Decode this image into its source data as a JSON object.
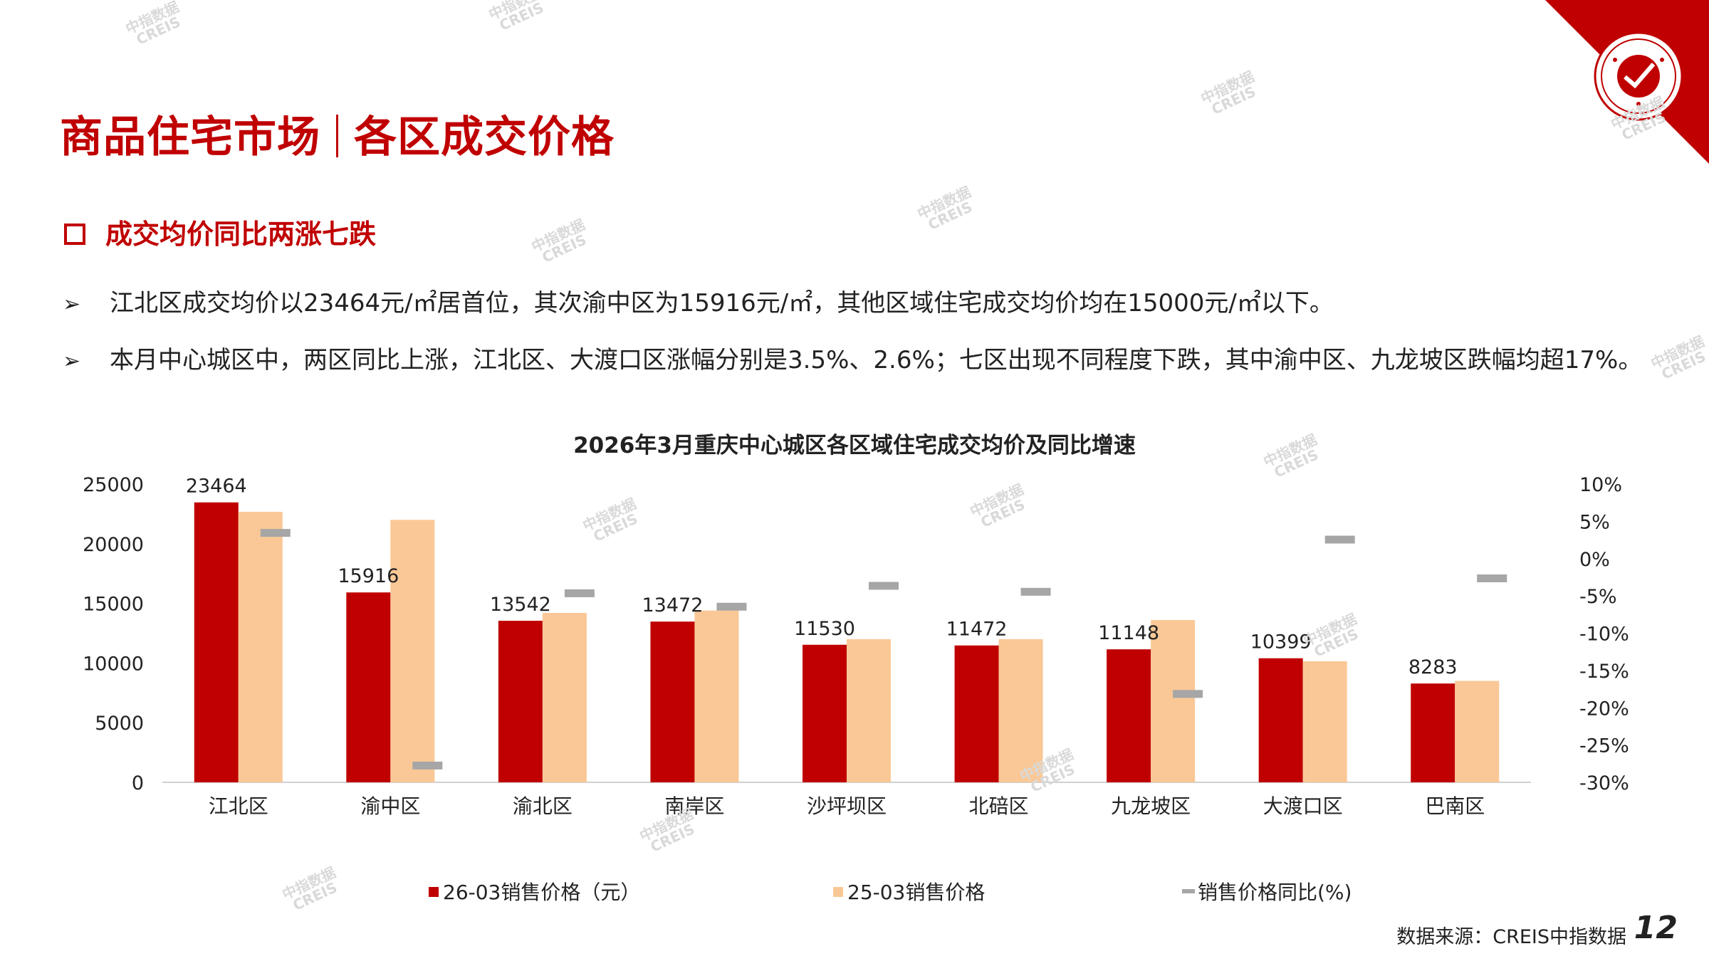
{
  "page": {
    "title_part1": "商品住宅市场",
    "title_part2": "各区成交价格",
    "subtitle": "成交均价同比两涨七跌",
    "bullets": [
      "江北区成交均价以23464元/㎡居首位，其次渝中区为15916元/㎡，其他区域住宅成交均价均在15000元/㎡以下。",
      "本月中心城区中，两区同比上涨，江北区、大渡口区涨幅分别是3.5%、2.6%；七区出现不同程度下跌，其中渝中区、九龙坡区跌幅均超17%。"
    ],
    "bullet_marker": "➢",
    "source": "数据来源：CREIS中指数据",
    "page_number": "12",
    "watermark": [
      "中指数据",
      "CREIS"
    ]
  },
  "colors": {
    "accent": "#c00000",
    "bar_2026": "#c00000",
    "bar_2025": "#fac896",
    "yoy_marker": "#a6a6a6"
  },
  "icons": [
    "logo-seal-icon",
    "corner-ribbon-icon",
    "checkbox-square-icon",
    "arrow-bullet-icon"
  ],
  "chart_data": {
    "type": "bar",
    "title": "2026年3月重庆中心城区各区域住宅成交均价及同比增速",
    "categories": [
      "江北区",
      "渝中区",
      "渝北区",
      "南岸区",
      "沙坪坝区",
      "北碚区",
      "九龙坡区",
      "大渡口区",
      "巴南区"
    ],
    "series": [
      {
        "name": "26-03销售价格（元）",
        "axis": "left",
        "values": [
          23464,
          15916,
          13542,
          13472,
          11530,
          11472,
          11148,
          10399,
          8283
        ],
        "data_labels": [
          "23464",
          "15916",
          "13542",
          "13472",
          "11530",
          "11472",
          "11148",
          "10399",
          "8283"
        ]
      },
      {
        "name": "25-03销售价格",
        "axis": "left",
        "values": [
          22670,
          22000,
          14200,
          14400,
          12000,
          12000,
          13600,
          10150,
          8500
        ]
      },
      {
        "name": "销售价格同比(%)",
        "axis": "right",
        "type": "marker",
        "values": [
          3.5,
          -27.7,
          -4.6,
          -6.4,
          -3.6,
          -4.4,
          -18.1,
          2.6,
          -2.6
        ]
      }
    ],
    "y_left": {
      "ylim": [
        0,
        25000
      ],
      "ticks": [
        "0",
        "5000",
        "10000",
        "15000",
        "20000",
        "25000"
      ]
    },
    "y_right": {
      "ylim": [
        -30,
        10
      ],
      "ticks": [
        "-30%",
        "-25%",
        "-20%",
        "-15%",
        "-10%",
        "-5%",
        "0%",
        "5%",
        "10%"
      ]
    },
    "grid": false,
    "legend": "bottom"
  }
}
